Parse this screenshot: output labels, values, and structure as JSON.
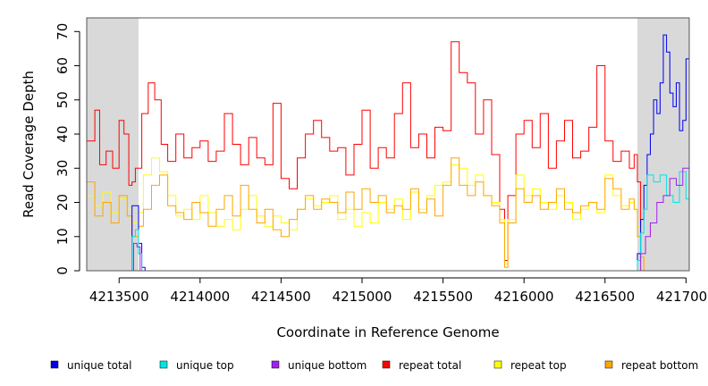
{
  "chart_data": {
    "type": "line",
    "title": "",
    "xlabel": "Coordinate in Reference Genome",
    "ylabel": "Read Coverage Depth",
    "xlim": [
      4213300,
      4217020
    ],
    "ylim": [
      0,
      74
    ],
    "xticks": [
      4213500,
      4214000,
      4214500,
      4215000,
      4215500,
      4216000,
      4216500,
      4217000
    ],
    "xtick_labels": [
      "4213500",
      "4214000",
      "4214500",
      "4215000",
      "4215500",
      "4216000",
      "4216500",
      "4217000"
    ],
    "yticks": [
      0,
      10,
      20,
      30,
      40,
      50,
      60,
      70
    ],
    "ytick_labels": [
      "0",
      "10",
      "20",
      "30",
      "40",
      "50",
      "60",
      "70"
    ],
    "shaded_regions": [
      {
        "start": 4213300,
        "end": 4213620,
        "color": "#d9d9d9"
      },
      {
        "start": 4216700,
        "end": 4217020,
        "color": "#d9d9d9"
      }
    ],
    "legend": [
      {
        "label": "unique total",
        "color": "#0000ee"
      },
      {
        "label": "unique top",
        "color": "#00e5e5"
      },
      {
        "label": "unique bottom",
        "color": "#a020f0"
      },
      {
        "label": "repeat total",
        "color": "#ff0000"
      },
      {
        "label": "repeat top",
        "color": "#ffff00"
      },
      {
        "label": "repeat bottom",
        "color": "#ffa500"
      }
    ],
    "series": [
      {
        "name": "repeat total",
        "color": "#ff0000",
        "x": [
          4213300,
          4213350,
          4213380,
          4213420,
          4213460,
          4213500,
          4213530,
          4213560,
          4213580,
          4213600,
          4213640,
          4213680,
          4213720,
          4213760,
          4213800,
          4213850,
          4213900,
          4213950,
          4214000,
          4214050,
          4214100,
          4214150,
          4214200,
          4214250,
          4214300,
          4214350,
          4214400,
          4214450,
          4214500,
          4214550,
          4214600,
          4214650,
          4214700,
          4214750,
          4214800,
          4214850,
          4214900,
          4214950,
          4215000,
          4215050,
          4215100,
          4215150,
          4215200,
          4215250,
          4215300,
          4215350,
          4215400,
          4215450,
          4215500,
          4215550,
          4215600,
          4215650,
          4215700,
          4215750,
          4215800,
          4215850,
          4215880,
          4215900,
          4215950,
          4216000,
          4216050,
          4216100,
          4216150,
          4216200,
          4216250,
          4216300,
          4216350,
          4216400,
          4216450,
          4216500,
          4216550,
          4216600,
          4216650,
          4216680,
          4216700,
          4216720,
          4216750,
          4216800,
          4216900,
          4217020
        ],
        "values": [
          38,
          47,
          31,
          35,
          30,
          44,
          40,
          25,
          26,
          30,
          46,
          55,
          50,
          37,
          32,
          40,
          33,
          36,
          38,
          32,
          35,
          46,
          37,
          31,
          39,
          33,
          31,
          49,
          27,
          24,
          33,
          40,
          44,
          39,
          35,
          36,
          28,
          37,
          47,
          30,
          36,
          33,
          46,
          55,
          36,
          40,
          33,
          42,
          41,
          67,
          58,
          55,
          40,
          50,
          34,
          18,
          3,
          22,
          40,
          44,
          36,
          46,
          30,
          38,
          44,
          33,
          35,
          42,
          60,
          38,
          32,
          35,
          30,
          34,
          26,
          0,
          0,
          0,
          0,
          0
        ]
      },
      {
        "name": "repeat top",
        "color": "#ffff00",
        "x": [
          4213300,
          4213350,
          4213400,
          4213450,
          4213500,
          4213550,
          4213580,
          4213620,
          4213650,
          4213700,
          4213750,
          4213800,
          4213850,
          4213900,
          4213950,
          4214000,
          4214050,
          4214100,
          4214150,
          4214200,
          4214250,
          4214300,
          4214350,
          4214400,
          4214450,
          4214500,
          4214550,
          4214600,
          4214650,
          4214700,
          4214750,
          4214800,
          4214850,
          4214900,
          4214950,
          4215000,
          4215050,
          4215100,
          4215150,
          4215200,
          4215250,
          4215300,
          4215350,
          4215400,
          4215450,
          4215500,
          4215550,
          4215600,
          4215650,
          4215700,
          4215750,
          4215800,
          4215850,
          4215880,
          4215900,
          4215950,
          4216000,
          4216050,
          4216100,
          4216150,
          4216200,
          4216250,
          4216300,
          4216350,
          4216400,
          4216450,
          4216500,
          4216550,
          4216600,
          4216650,
          4216680,
          4216700,
          4216720,
          4217020
        ],
        "values": [
          22,
          19,
          23,
          17,
          21,
          18,
          14,
          17,
          28,
          33,
          29,
          22,
          16,
          18,
          15,
          22,
          17,
          13,
          15,
          12,
          18,
          22,
          16,
          13,
          16,
          14,
          12,
          18,
          21,
          19,
          20,
          22,
          15,
          18,
          13,
          17,
          14,
          20,
          18,
          21,
          15,
          23,
          18,
          22,
          25,
          26,
          31,
          30,
          25,
          28,
          22,
          20,
          15,
          2,
          15,
          28,
          22,
          24,
          20,
          18,
          22,
          20,
          15,
          18,
          20,
          17,
          28,
          22,
          19,
          20,
          18,
          13,
          0,
          0
        ]
      },
      {
        "name": "repeat bottom",
        "color": "#ffa500",
        "x": [
          4213300,
          4213350,
          4213400,
          4213450,
          4213500,
          4213550,
          4213580,
          4213620,
          4213650,
          4213700,
          4213750,
          4213800,
          4213850,
          4213900,
          4213950,
          4214000,
          4214050,
          4214100,
          4214150,
          4214200,
          4214250,
          4214300,
          4214350,
          4214400,
          4214450,
          4214500,
          4214550,
          4214600,
          4214650,
          4214700,
          4214750,
          4214800,
          4214850,
          4214900,
          4214950,
          4215000,
          4215050,
          4215100,
          4215150,
          4215200,
          4215250,
          4215300,
          4215350,
          4215400,
          4215450,
          4215500,
          4215550,
          4215600,
          4215650,
          4215700,
          4215750,
          4215800,
          4215850,
          4215880,
          4215900,
          4215950,
          4216000,
          4216050,
          4216100,
          4216150,
          4216200,
          4216250,
          4216300,
          4216350,
          4216400,
          4216450,
          4216500,
          4216550,
          4216600,
          4216650,
          4216680,
          4216700,
          4216720,
          4216740,
          4217020
        ],
        "values": [
          26,
          16,
          20,
          14,
          22,
          16,
          10,
          13,
          18,
          25,
          28,
          19,
          17,
          15,
          20,
          17,
          13,
          18,
          22,
          16,
          25,
          18,
          14,
          18,
          12,
          10,
          15,
          18,
          22,
          18,
          21,
          20,
          17,
          23,
          18,
          24,
          20,
          22,
          17,
          19,
          18,
          24,
          17,
          21,
          16,
          25,
          33,
          25,
          22,
          26,
          22,
          19,
          14,
          1,
          14,
          24,
          20,
          22,
          18,
          20,
          24,
          18,
          17,
          19,
          20,
          18,
          27,
          24,
          18,
          21,
          18,
          10,
          4,
          0,
          0
        ]
      },
      {
        "name": "unique total",
        "color": "#0000ee",
        "x": [
          4213300,
          4213560,
          4213580,
          4213600,
          4213620,
          4213640,
          4213660,
          4216680,
          4216700,
          4216720,
          4216740,
          4216760,
          4216780,
          4216800,
          4216820,
          4216840,
          4216860,
          4216880,
          4216900,
          4216920,
          4216940,
          4216960,
          4216980,
          4217000,
          4217020
        ],
        "values": [
          0,
          0,
          19,
          19,
          8,
          1,
          0,
          0,
          5,
          15,
          25,
          34,
          40,
          50,
          46,
          55,
          69,
          64,
          52,
          48,
          55,
          41,
          44,
          62,
          52
        ]
      },
      {
        "name": "unique top",
        "color": "#00e5e5",
        "x": [
          4213300,
          4213560,
          4213580,
          4213600,
          4213620,
          4213640,
          4216680,
          4216700,
          4216720,
          4216740,
          4216760,
          4216800,
          4216840,
          4216880,
          4216920,
          4216960,
          4217000,
          4217020
        ],
        "values": [
          0,
          0,
          10,
          12,
          5,
          0,
          0,
          3,
          11,
          18,
          28,
          26,
          28,
          22,
          20,
          29,
          21,
          16
        ]
      },
      {
        "name": "unique bottom",
        "color": "#a020f0",
        "x": [
          4213300,
          4213570,
          4213590,
          4213610,
          4213630,
          4216690,
          4216720,
          4216750,
          4216780,
          4216820,
          4216860,
          4216900,
          4216940,
          4216980,
          4217020
        ],
        "values": [
          0,
          0,
          8,
          7,
          0,
          0,
          5,
          10,
          14,
          20,
          22,
          27,
          25,
          30,
          36
        ]
      }
    ]
  }
}
